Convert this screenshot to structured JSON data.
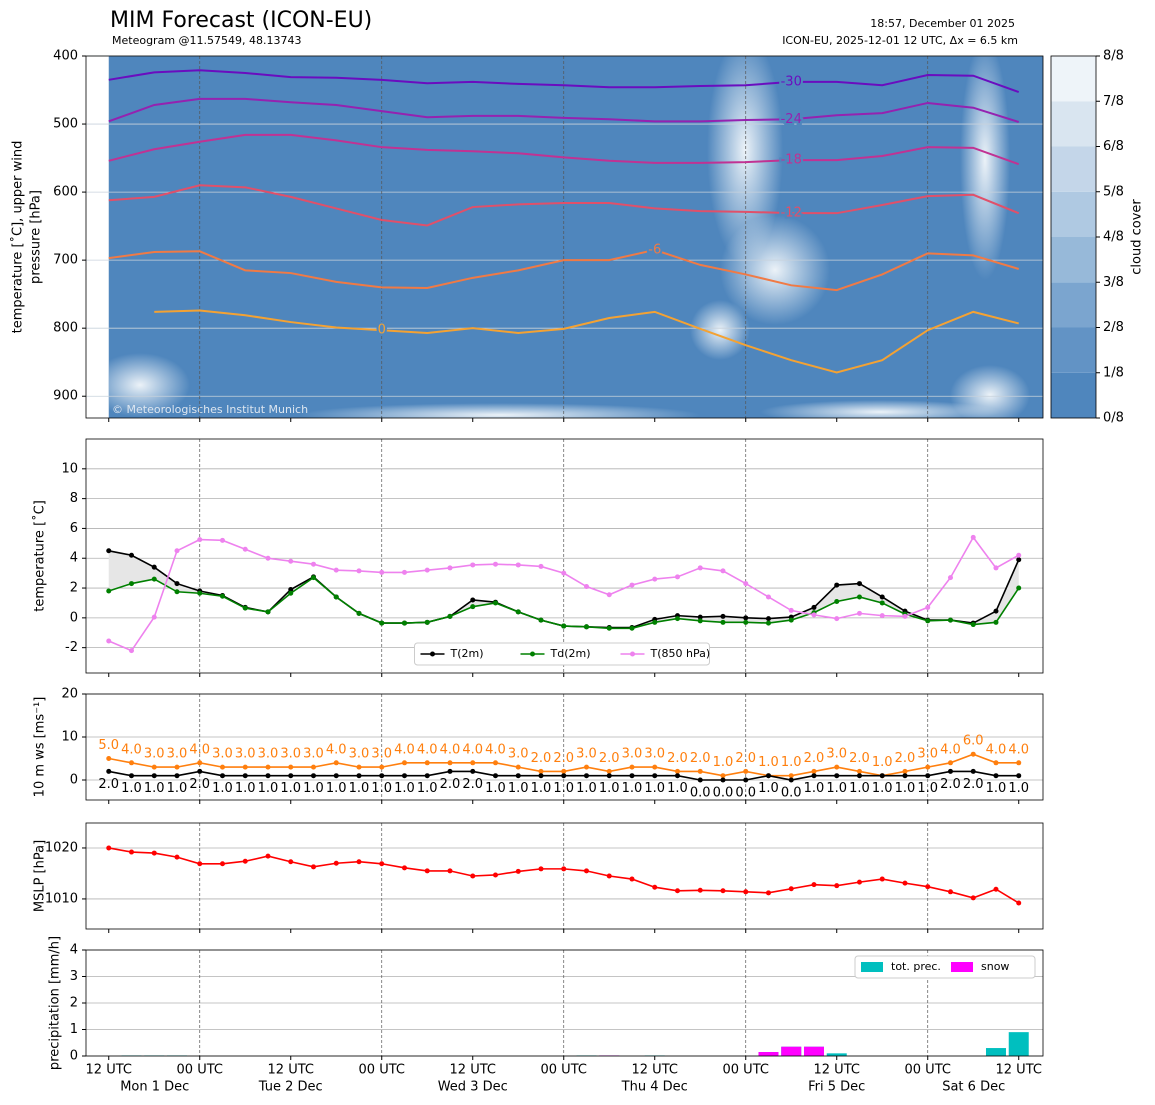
{
  "title": "MIM Forecast (ICON-EU)",
  "subtitle": "Meteogram @11.57549, 48.13743",
  "run_time": "18:57, December 01 2025",
  "model_info": "ICON-EU, 2025-12-01 12 UTC, Δx = 6.5 km",
  "copyright": "© Meteorologisches Institut Munich",
  "chart_data": [
    {
      "type": "contour",
      "ylabel": [
        "temperature [˚C], upper wind",
        "pressure [hPa]"
      ],
      "x": [
        0,
        6,
        12,
        18,
        24,
        30,
        36,
        42,
        48,
        54,
        60,
        66,
        72,
        78,
        84,
        90,
        96,
        102,
        108,
        114,
        120
      ],
      "xlim": [
        -3,
        123.2
      ],
      "ylim": [
        932,
        400
      ],
      "yticks": [
        400,
        500,
        600,
        700,
        800,
        900
      ],
      "grid": true,
      "series": [
        {
          "name": "-30",
          "color": "#6a0dbf",
          "values": [
            435,
            424,
            421,
            425,
            431,
            432,
            435,
            440,
            438,
            441,
            443,
            446,
            446,
            444,
            443,
            438,
            438,
            443,
            428,
            429,
            453
          ]
        },
        {
          "name": "-24",
          "color": "#9522b0",
          "values": [
            496,
            472,
            463,
            463,
            468,
            472,
            481,
            490,
            488,
            488,
            491,
            493,
            496,
            496,
            494,
            493,
            487,
            484,
            469,
            476,
            497
          ]
        },
        {
          "name": "-18",
          "color": "#c13293",
          "values": [
            554,
            537,
            526,
            516,
            516,
            524,
            534,
            538,
            540,
            543,
            549,
            554,
            557,
            557,
            556,
            553,
            553,
            547,
            534,
            535,
            559
          ]
        },
        {
          "name": "-12",
          "color": "#e0506a",
          "values": [
            612,
            607,
            590,
            593,
            607,
            624,
            641,
            649,
            622,
            618,
            616,
            616,
            624,
            628,
            629,
            631,
            631,
            619,
            606,
            604,
            631
          ]
        },
        {
          "name": "-6",
          "color": "#f07a45",
          "values": [
            697,
            688,
            687,
            715,
            719,
            732,
            740,
            741,
            726,
            715,
            700,
            700,
            685,
            707,
            721,
            737,
            744,
            721,
            690,
            693,
            713
          ]
        },
        {
          "name": "0",
          "color": "#f4a233",
          "values": [
            null,
            776,
            774,
            781,
            791,
            799,
            803,
            807,
            800,
            807,
            801,
            785,
            776,
            801,
            825,
            847,
            865,
            847,
            803,
            776,
            793
          ]
        }
      ],
      "colorbar": {
        "label": "cloud cover",
        "ticks": [
          {
            "value": 0,
            "label": "0/8"
          },
          {
            "value": 1,
            "label": "1/8"
          },
          {
            "value": 2,
            "label": "2/8"
          },
          {
            "value": 3,
            "label": "3/8"
          },
          {
            "value": 4,
            "label": "4/8"
          },
          {
            "value": 5,
            "label": "5/8"
          },
          {
            "value": 6,
            "label": "6/8"
          },
          {
            "value": 7,
            "label": "7/8"
          },
          {
            "value": 8,
            "label": "8/8"
          }
        ],
        "colors": [
          "#4f86bd",
          "#6293c5",
          "#7ba5cf",
          "#97b9d9",
          "#afc9e2",
          "#c4d6e9",
          "#d9e5f0",
          "#eef4f9"
        ]
      }
    },
    {
      "type": "line",
      "ylabel": "temperature [˚C]",
      "x": [
        0,
        3,
        6,
        9,
        12,
        15,
        18,
        21,
        24,
        27,
        30,
        33,
        36,
        39,
        42,
        45,
        48,
        51,
        54,
        57,
        60,
        63,
        66,
        69,
        72,
        75,
        78,
        81,
        84,
        87,
        90,
        93,
        96,
        99,
        102,
        105,
        108,
        111,
        114,
        117,
        120
      ],
      "xlim": [
        -3,
        123.2
      ],
      "ylim": [
        -3.7,
        12
      ],
      "yticks": [
        -2,
        0,
        2,
        4,
        6,
        8,
        10
      ],
      "grid": true,
      "legend": "lower center",
      "series": [
        {
          "name": "T(2m)",
          "color": "#000000",
          "values": [
            4.5,
            4.2,
            3.4,
            2.3,
            1.8,
            1.5,
            0.7,
            0.4,
            1.9,
            2.75,
            1.4,
            0.3,
            -0.35,
            -0.35,
            -0.3,
            0.1,
            1.2,
            1.05,
            0.4,
            -0.15,
            -0.55,
            -0.6,
            -0.65,
            -0.65,
            -0.1,
            0.15,
            0.05,
            0.1,
            0,
            -0.05,
            0.05,
            0.7,
            2.2,
            2.3,
            1.4,
            0.45,
            -0.15,
            -0.15,
            -0.35,
            0.45,
            3.9
          ]
        },
        {
          "name": "Td(2m)",
          "color": "#008000",
          "values": [
            1.8,
            2.3,
            2.6,
            1.75,
            1.65,
            1.45,
            0.65,
            0.4,
            1.65,
            2.7,
            1.4,
            0.3,
            -0.35,
            -0.35,
            -0.3,
            0.1,
            0.75,
            1.0,
            0.4,
            -0.15,
            -0.55,
            -0.6,
            -0.7,
            -0.7,
            -0.3,
            -0.05,
            -0.2,
            -0.3,
            -0.3,
            -0.35,
            -0.15,
            0.35,
            1.1,
            1.4,
            1.0,
            0.25,
            -0.2,
            -0.15,
            -0.45,
            -0.3,
            2.0
          ]
        },
        {
          "name": "T(850 hPa)",
          "color": "#ee82ee",
          "values": [
            -1.55,
            -2.2,
            0.05,
            4.5,
            5.25,
            5.2,
            4.6,
            4.0,
            3.8,
            3.6,
            3.2,
            3.15,
            3.05,
            3.05,
            3.2,
            3.35,
            3.55,
            3.6,
            3.55,
            3.45,
            3.0,
            2.1,
            1.55,
            2.2,
            2.6,
            2.75,
            3.35,
            3.15,
            2.3,
            1.4,
            0.5,
            0.2,
            -0.05,
            0.3,
            0.15,
            0.1,
            0.7,
            2.7,
            5.4,
            3.35,
            4.2
          ]
        }
      ]
    },
    {
      "type": "line",
      "ylabel": "10 m ws [ms⁻¹]",
      "x": [
        0,
        3,
        6,
        9,
        12,
        15,
        18,
        21,
        24,
        27,
        30,
        33,
        36,
        39,
        42,
        45,
        48,
        51,
        54,
        57,
        60,
        63,
        66,
        69,
        72,
        75,
        78,
        81,
        84,
        87,
        90,
        93,
        96,
        99,
        102,
        105,
        108,
        111,
        114,
        117,
        120
      ],
      "xlim": [
        -3,
        123.2
      ],
      "ylim": [
        -4.65,
        20
      ],
      "yticks": [
        0,
        10,
        20
      ],
      "grid": true,
      "series": [
        {
          "color": "#ff7f0e",
          "label_position": "above",
          "values": [
            5,
            4,
            3,
            3,
            4,
            3,
            3,
            3,
            3,
            3,
            4,
            3,
            3,
            4,
            4,
            4,
            4,
            4,
            3,
            2,
            2,
            3,
            2,
            3,
            3,
            2,
            2,
            1,
            2,
            1,
            1,
            2,
            3,
            2,
            1,
            2,
            3,
            4,
            6,
            4,
            4
          ],
          "value_labels": [
            "5.0",
            "4.0",
            "3.0",
            "3.0",
            "4.0",
            "3.0",
            "3.0",
            "3.0",
            "3.0",
            "3.0",
            "4.0",
            "3.0",
            "3.0",
            "4.0",
            "4.0",
            "4.0",
            "4.0",
            "4.0",
            "3.0",
            "2.0",
            "2.0",
            "3.0",
            "2.0",
            "3.0",
            "3.0",
            "2.0",
            "2.0",
            "1.0",
            "2.0",
            "1.0",
            "1.0",
            "2.0",
            "3.0",
            "2.0",
            "1.0",
            "2.0",
            "3.0",
            "4.0",
            "6.0",
            "4.0",
            "4.0"
          ]
        },
        {
          "color": "#000000",
          "label_position": "below",
          "values": [
            2,
            1,
            1,
            1,
            2,
            1,
            1,
            1,
            1,
            1,
            1,
            1,
            1,
            1,
            1,
            2,
            2,
            1,
            1,
            1,
            1,
            1,
            1,
            1,
            1,
            1,
            0,
            0,
            0,
            1,
            0,
            1,
            1,
            1,
            1,
            1,
            1,
            2,
            2,
            1,
            1
          ],
          "value_labels": [
            "2.0",
            "1.0",
            "1.0",
            "1.0",
            "2.0",
            "1.0",
            "1.0",
            "1.0",
            "1.0",
            "1.0",
            "1.0",
            "1.0",
            "1.0",
            "1.0",
            "1.0",
            "2.0",
            "2.0",
            "1.0",
            "1.0",
            "1.0",
            "1.0",
            "1.0",
            "1.0",
            "1.0",
            "1.0",
            "1.0",
            "0.0",
            "0.0",
            "0.0",
            "1.0",
            "0.0",
            "1.0",
            "1.0",
            "1.0",
            "1.0",
            "1.0",
            "1.0",
            "2.0",
            "2.0",
            "1.0",
            "1.0"
          ]
        }
      ]
    },
    {
      "type": "line",
      "ylabel": "MSLP [hPa]",
      "x": [
        0,
        3,
        6,
        9,
        12,
        15,
        18,
        21,
        24,
        27,
        30,
        33,
        36,
        39,
        42,
        45,
        48,
        51,
        54,
        57,
        60,
        63,
        66,
        69,
        72,
        75,
        78,
        81,
        84,
        87,
        90,
        93,
        96,
        99,
        102,
        105,
        108,
        111,
        114,
        117,
        120
      ],
      "xlim": [
        -3,
        123.2
      ],
      "ylim": [
        1004.1,
        1024.9
      ],
      "yticks": [
        1010,
        1020
      ],
      "grid": true,
      "series": [
        {
          "color": "#ff0000",
          "values": [
            1020,
            1019.2,
            1019,
            1018.2,
            1016.9,
            1016.9,
            1017.4,
            1018.4,
            1017.3,
            1016.3,
            1017,
            1017.3,
            1016.9,
            1016.1,
            1015.5,
            1015.5,
            1014.5,
            1014.7,
            1015.4,
            1015.9,
            1015.9,
            1015.5,
            1014.5,
            1013.9,
            1012.3,
            1011.6,
            1011.7,
            1011.6,
            1011.4,
            1011.2,
            1012,
            1012.8,
            1012.6,
            1013.3,
            1013.9,
            1013.1,
            1012.4,
            1011.4,
            1010.2,
            1011.9,
            1009.2
          ]
        }
      ]
    },
    {
      "type": "bar",
      "ylabel": "precipitation [mm/h]",
      "x": [
        0,
        3,
        6,
        9,
        12,
        15,
        18,
        21,
        24,
        27,
        30,
        33,
        36,
        39,
        42,
        45,
        48,
        51,
        54,
        57,
        60,
        63,
        66,
        69,
        72,
        75,
        78,
        81,
        84,
        87,
        90,
        93,
        96,
        99,
        102,
        105,
        108,
        111,
        114,
        117,
        120
      ],
      "xlim": [
        -3,
        123.2
      ],
      "ylim": [
        0,
        4
      ],
      "yticks": [
        0,
        1,
        2,
        3,
        4
      ],
      "grid": true,
      "legend": "upper right",
      "xticks": [
        {
          "value": 0,
          "label": "12 UTC"
        },
        {
          "value": 12,
          "label": "00 UTC"
        },
        {
          "value": 24,
          "label": "12 UTC"
        },
        {
          "value": 36,
          "label": "00 UTC"
        },
        {
          "value": 48,
          "label": "12 UTC"
        },
        {
          "value": 60,
          "label": "00 UTC"
        },
        {
          "value": 72,
          "label": "12 UTC"
        },
        {
          "value": 84,
          "label": "00 UTC"
        },
        {
          "value": 96,
          "label": "12 UTC"
        },
        {
          "value": 108,
          "label": "00 UTC"
        },
        {
          "value": 120,
          "label": "12 UTC"
        }
      ],
      "days": [
        "Mon 1 Dec",
        "Tue 2 Dec",
        "Wed 3 Dec",
        "Thu 4 Dec",
        "Fri 5 Dec",
        "Sat 6 Dec"
      ],
      "series": [
        {
          "name": "tot. prec.",
          "color": "#00bfbf",
          "values": [
            0,
            0.02,
            0.02,
            0.02,
            0,
            0,
            0,
            0,
            0,
            0,
            0,
            0,
            0,
            0,
            0,
            0,
            0,
            0,
            0,
            0,
            0,
            0.02,
            0.02,
            0,
            0.02,
            0,
            0,
            0,
            0,
            0.15,
            0.35,
            0.35,
            0.1,
            0,
            0,
            0,
            0,
            0,
            0,
            0.3,
            0.9
          ]
        },
        {
          "name": "snow",
          "color": "#ff00ff",
          "values": [
            0,
            0,
            0,
            0,
            0,
            0,
            0,
            0,
            0,
            0,
            0,
            0,
            0,
            0,
            0,
            0,
            0,
            0,
            0,
            0,
            0,
            0,
            0.02,
            0,
            0,
            0,
            0,
            0,
            0,
            0.15,
            0.35,
            0.35,
            0,
            0,
            0,
            0,
            0,
            0,
            0,
            0,
            0
          ]
        }
      ]
    }
  ]
}
